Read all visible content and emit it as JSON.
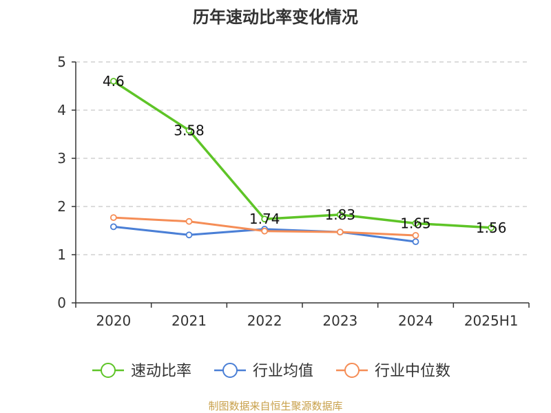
{
  "chart_data": {
    "type": "line",
    "title": "历年速动比率变化情况",
    "categories": [
      "2020",
      "2021",
      "2022",
      "2023",
      "2024",
      "2025H1"
    ],
    "ylim": [
      0,
      5
    ],
    "yticks": [
      0,
      1,
      2,
      3,
      4,
      5
    ],
    "grid": true,
    "legend_position": "bottom",
    "series": [
      {
        "name": "速动比率",
        "color": "#5ec427",
        "values": [
          4.6,
          3.58,
          1.74,
          1.83,
          1.65,
          1.56
        ],
        "labels": [
          "4.6",
          "3.58",
          "1.74",
          "1.83",
          "1.65",
          "1.56"
        ]
      },
      {
        "name": "行业均值",
        "color": "#4a7fd6",
        "values": [
          1.58,
          1.41,
          1.53,
          1.47,
          1.27,
          null
        ]
      },
      {
        "name": "行业中位数",
        "color": "#f58d56",
        "values": [
          1.77,
          1.69,
          1.49,
          1.47,
          1.4,
          null
        ]
      }
    ]
  },
  "source": "制图数据来自恒生聚源数据库"
}
